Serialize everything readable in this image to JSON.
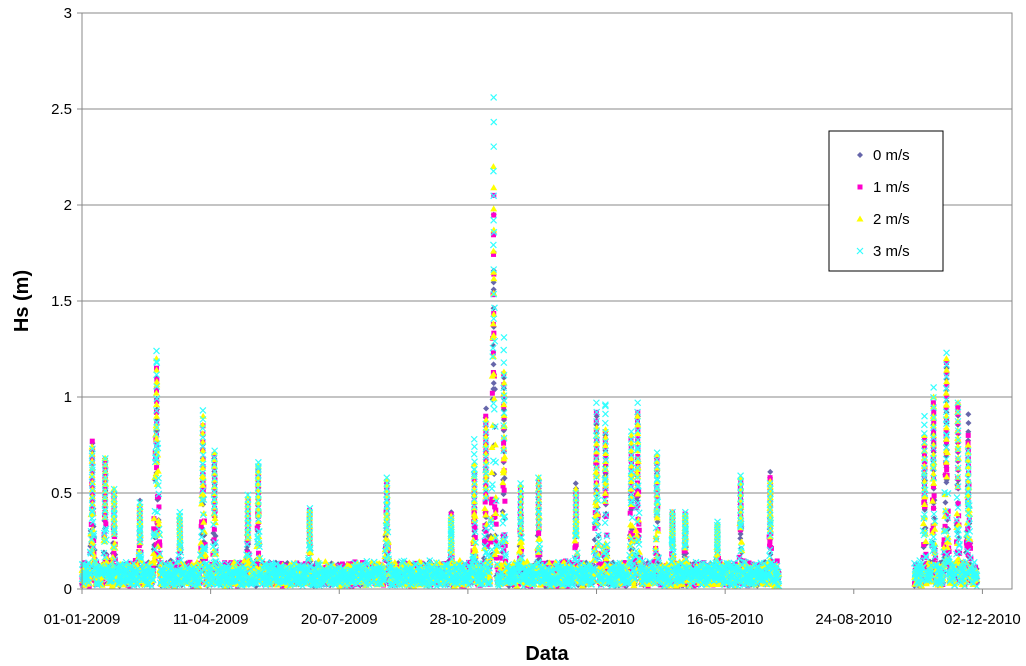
{
  "chart_data": {
    "type": "scatter",
    "title": "",
    "xlabel": "Data",
    "ylabel": "Hs (m)",
    "x_axis": {
      "type": "date",
      "range": [
        "2009-01-01",
        "2010-12-25"
      ],
      "tick_labels": [
        "01-01-2009",
        "11-04-2009",
        "20-07-2009",
        "28-10-2009",
        "05-02-2010",
        "16-05-2010",
        "24-08-2010",
        "02-12-2010"
      ],
      "tick_dates": [
        "2009-01-01",
        "2009-04-11",
        "2009-07-20",
        "2009-10-28",
        "2010-02-05",
        "2010-05-16",
        "2010-08-24",
        "2010-12-02"
      ]
    },
    "y_axis": {
      "range": [
        0,
        3
      ],
      "ticks": [
        0,
        0.5,
        1,
        1.5,
        2,
        2.5,
        3
      ],
      "tick_labels": [
        "0",
        "0.5",
        "1",
        "1.5",
        "2",
        "2.5",
        "3"
      ]
    },
    "grid": "horizontal",
    "legend_position": "right",
    "series": [
      {
        "name": "0 m/s",
        "color": "#6666aa",
        "marker": "diamond"
      },
      {
        "name": "1 m/s",
        "color": "#ff00cc",
        "marker": "square"
      },
      {
        "name": "2 m/s",
        "color": "#ffff00",
        "marker": "triangle"
      },
      {
        "name": "3 m/s",
        "color": "#33ffff",
        "marker": "x"
      }
    ],
    "peak_events": [
      {
        "date": "2009-01-09",
        "duration_days": 3,
        "peak": [
          0.76,
          0.77,
          0.74,
          0.73
        ]
      },
      {
        "date": "2009-01-19",
        "duration_days": 2,
        "peak": [
          0.68,
          0.66,
          0.68,
          0.68
        ]
      },
      {
        "date": "2009-01-26",
        "duration_days": 2,
        "peak": [
          0.5,
          0.5,
          0.52,
          0.52
        ]
      },
      {
        "date": "2009-02-15",
        "duration_days": 2,
        "peak": [
          0.46,
          0.43,
          0.44,
          0.45
        ]
      },
      {
        "date": "2009-02-28",
        "duration_days": 4,
        "peak": [
          1.1,
          1.15,
          1.2,
          1.24
        ]
      },
      {
        "date": "2009-03-18",
        "duration_days": 2,
        "peak": [
          0.35,
          0.36,
          0.38,
          0.4
        ]
      },
      {
        "date": "2009-04-05",
        "duration_days": 3,
        "peak": [
          0.8,
          0.85,
          0.9,
          0.93
        ]
      },
      {
        "date": "2009-04-14",
        "duration_days": 2,
        "peak": [
          0.68,
          0.7,
          0.71,
          0.72
        ]
      },
      {
        "date": "2009-05-10",
        "duration_days": 2,
        "peak": [
          0.45,
          0.46,
          0.48,
          0.49
        ]
      },
      {
        "date": "2009-05-18",
        "duration_days": 2,
        "peak": [
          0.62,
          0.63,
          0.64,
          0.66
        ]
      },
      {
        "date": "2009-06-27",
        "duration_days": 2,
        "peak": [
          0.4,
          0.41,
          0.41,
          0.42
        ]
      },
      {
        "date": "2009-08-26",
        "duration_days": 3,
        "peak": [
          0.55,
          0.56,
          0.57,
          0.58
        ]
      },
      {
        "date": "2009-10-15",
        "duration_days": 2,
        "peak": [
          0.4,
          0.39,
          0.38,
          0.37
        ]
      },
      {
        "date": "2009-11-02",
        "duration_days": 2,
        "peak": [
          0.5,
          0.6,
          0.65,
          0.78
        ]
      },
      {
        "date": "2009-11-11",
        "duration_days": 2,
        "peak": [
          0.94,
          0.9,
          0.88,
          0.86
        ]
      },
      {
        "date": "2009-11-17",
        "duration_days": 3,
        "peak": [
          1.95,
          2.05,
          2.2,
          2.56
        ]
      },
      {
        "date": "2009-11-25",
        "duration_days": 2,
        "peak": [
          1.1,
          1.12,
          1.13,
          1.31
        ]
      },
      {
        "date": "2009-12-08",
        "duration_days": 2,
        "peak": [
          0.5,
          0.52,
          0.54,
          0.55
        ]
      },
      {
        "date": "2009-12-22",
        "duration_days": 2,
        "peak": [
          0.55,
          0.56,
          0.58,
          0.58
        ]
      },
      {
        "date": "2010-01-20",
        "duration_days": 2,
        "peak": [
          0.55,
          0.5,
          0.52,
          0.5
        ]
      },
      {
        "date": "2010-02-05",
        "duration_days": 3,
        "peak": [
          0.9,
          0.92,
          0.84,
          0.97
        ]
      },
      {
        "date": "2010-02-12",
        "duration_days": 2,
        "peak": [
          0.8,
          0.82,
          0.83,
          0.96
        ]
      },
      {
        "date": "2010-03-04",
        "duration_days": 2,
        "peak": [
          0.75,
          0.78,
          0.8,
          0.82
        ]
      },
      {
        "date": "2010-03-09",
        "duration_days": 3,
        "peak": [
          0.9,
          0.92,
          0.9,
          0.97
        ]
      },
      {
        "date": "2010-03-24",
        "duration_days": 2,
        "peak": [
          0.68,
          0.69,
          0.7,
          0.71
        ]
      },
      {
        "date": "2010-04-05",
        "duration_days": 2,
        "peak": [
          0.4,
          0.4,
          0.4,
          0.4
        ]
      },
      {
        "date": "2010-04-15",
        "duration_days": 2,
        "peak": [
          0.38,
          0.39,
          0.39,
          0.4
        ]
      },
      {
        "date": "2010-05-10",
        "duration_days": 2,
        "peak": [
          0.32,
          0.33,
          0.34,
          0.35
        ]
      },
      {
        "date": "2010-05-28",
        "duration_days": 2,
        "peak": [
          0.55,
          0.56,
          0.58,
          0.59
        ]
      },
      {
        "date": "2010-06-20",
        "duration_days": 2,
        "peak": [
          0.61,
          0.58,
          0.56,
          0.55
        ]
      },
      {
        "date": "2010-10-18",
        "duration_days": 2,
        "peak": [
          0.75,
          0.78,
          0.8,
          0.9
        ]
      },
      {
        "date": "2010-10-25",
        "duration_days": 2,
        "peak": [
          0.95,
          0.97,
          1.0,
          1.05
        ]
      },
      {
        "date": "2010-11-04",
        "duration_days": 3,
        "peak": [
          1.15,
          1.18,
          1.2,
          1.23
        ]
      },
      {
        "date": "2010-11-13",
        "duration_days": 2,
        "peak": [
          0.95,
          0.96,
          0.97,
          0.97
        ]
      },
      {
        "date": "2010-11-21",
        "duration_days": 3,
        "peak": [
          0.91,
          0.8,
          0.75,
          0.72
        ]
      }
    ],
    "data_gaps": [
      [
        "2010-06-27",
        "2010-10-10"
      ],
      [
        "2010-11-28",
        "2010-12-25"
      ]
    ]
  }
}
